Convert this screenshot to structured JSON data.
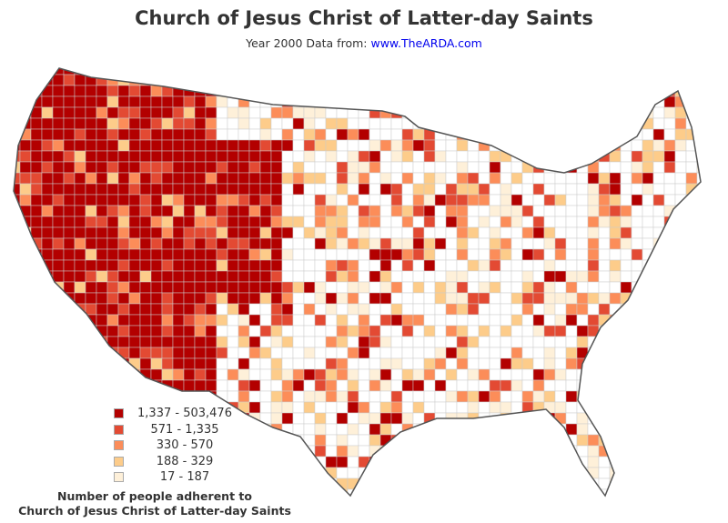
{
  "header": {
    "title": "Church of Jesus Christ of Latter-day Saints",
    "subtitle_prefix": "Year 2000 Data from: ",
    "subtitle_link": "www.TheARDA.com"
  },
  "legend": {
    "title_line1": "Number of people adherent to",
    "title_line2": "Church of Jesus Christ of Latter-day Saints",
    "items": [
      {
        "label": "1,337 - 503,476",
        "color": "#b30000"
      },
      {
        "label": "571 - 1,335",
        "color": "#e34a33"
      },
      {
        "label": "330 - 570",
        "color": "#fc8d59"
      },
      {
        "label": "188 - 329",
        "color": "#fdcc8a"
      },
      {
        "label": "17 - 187",
        "color": "#fef0d9"
      }
    ]
  },
  "map": {
    "type": "choropleth",
    "region": "United States counties",
    "no_data_color": "#ffffff",
    "border_color": "#555555"
  }
}
